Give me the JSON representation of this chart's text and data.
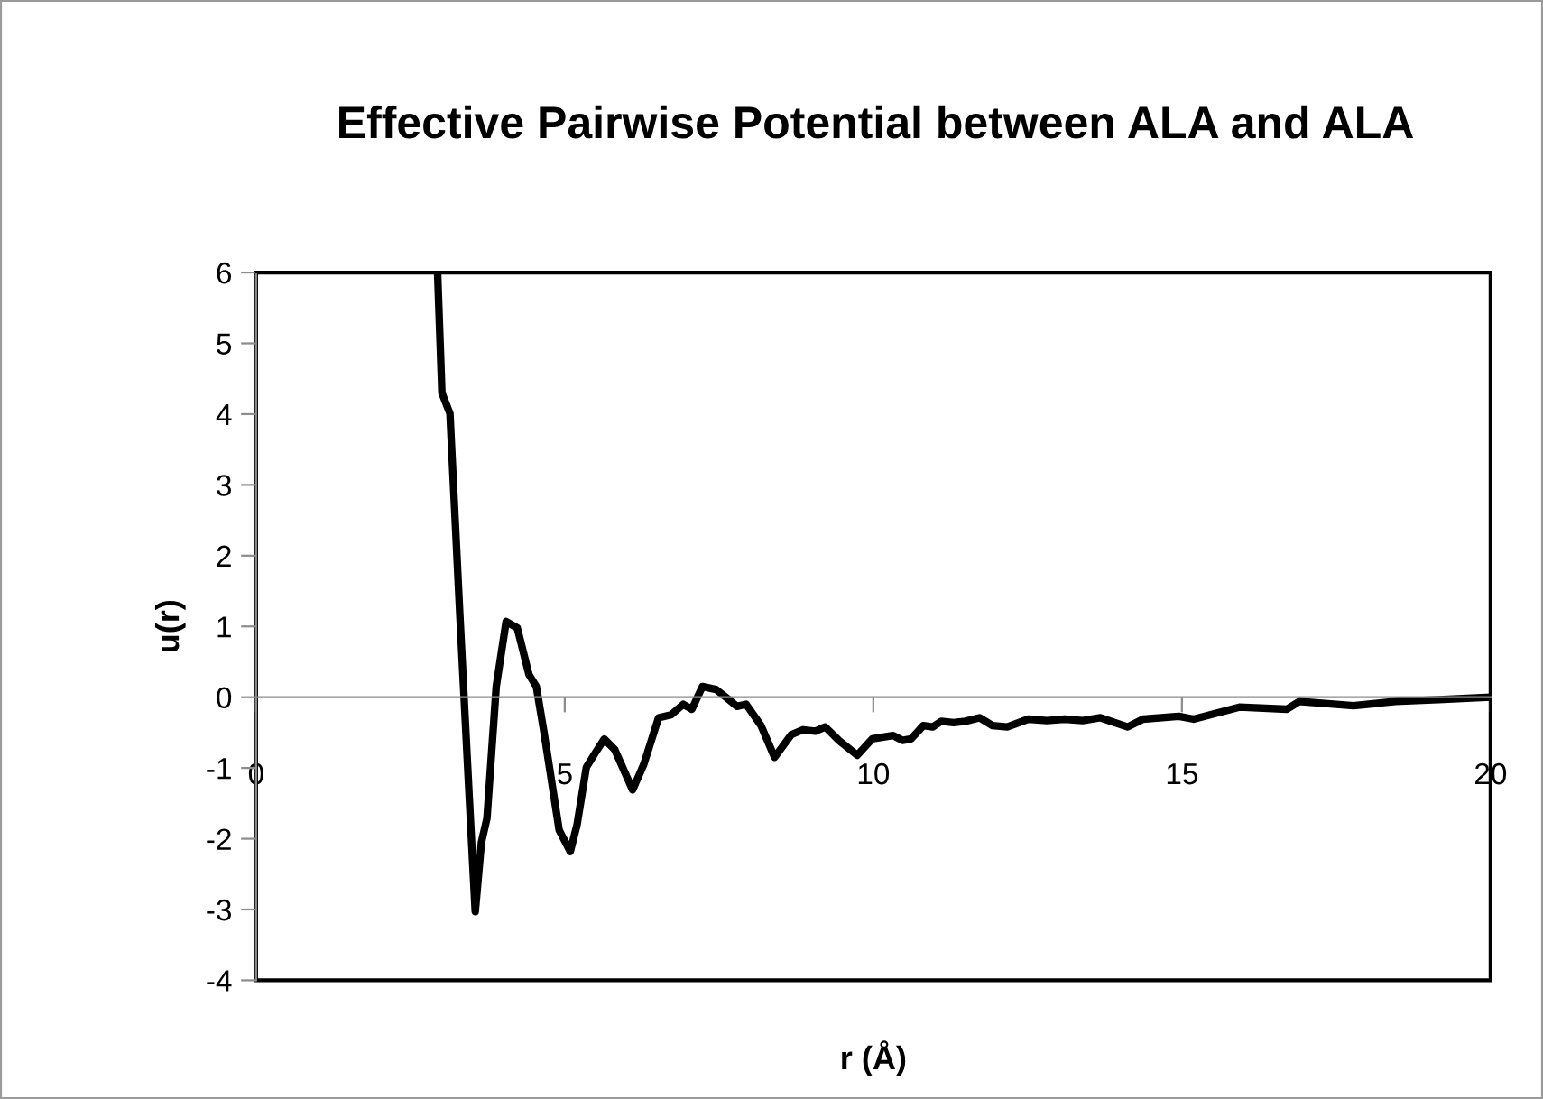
{
  "chart_data": {
    "type": "line",
    "title": "Effective Pairwise Potential between ALA and ALA",
    "xlabel": "r (Å)",
    "ylabel": "u(r)",
    "xlim": [
      0,
      20
    ],
    "xticks": [
      0,
      5,
      10,
      15,
      20
    ],
    "ylim": [
      -4,
      6
    ],
    "yticks": [
      -4,
      -3,
      -2,
      -1,
      0,
      1,
      2,
      3,
      4,
      5,
      6
    ],
    "grid": false,
    "legend": false,
    "marker": "none",
    "line_style": "solid",
    "series": [
      {
        "color": "#000000",
        "x": [
          2.94,
          3.01,
          3.14,
          3.3,
          3.45,
          3.55,
          3.65,
          3.74,
          3.89,
          4.05,
          4.23,
          4.42,
          4.54,
          4.67,
          4.91,
          5.09,
          5.2,
          5.35,
          5.5,
          5.64,
          5.81,
          6.1,
          6.28,
          6.52,
          6.72,
          6.92,
          7.06,
          7.23,
          7.45,
          7.64,
          7.79,
          7.94,
          8.18,
          8.4,
          8.67,
          8.86,
          9.06,
          9.22,
          9.44,
          9.74,
          9.98,
          10.32,
          10.47,
          10.61,
          10.81,
          10.96,
          11.1,
          11.3,
          11.49,
          11.72,
          11.93,
          12.17,
          12.51,
          12.81,
          13.1,
          13.39,
          13.68,
          14.12,
          14.37,
          14.95,
          15.19,
          15.93,
          16.7,
          16.9,
          17.78,
          18.46,
          19.24,
          19.97
        ],
        "values": [
          6.0,
          4.3,
          4.01,
          1.17,
          -1.37,
          -3.03,
          -2.05,
          -1.71,
          0.15,
          1.07,
          0.98,
          0.32,
          0.15,
          -0.53,
          -1.88,
          -2.18,
          -1.8,
          -0.99,
          -0.78,
          -0.59,
          -0.74,
          -1.31,
          -0.95,
          -0.29,
          -0.25,
          -0.1,
          -0.17,
          0.15,
          0.11,
          -0.02,
          -0.13,
          -0.1,
          -0.4,
          -0.85,
          -0.53,
          -0.46,
          -0.48,
          -0.42,
          -0.61,
          -0.82,
          -0.59,
          -0.54,
          -0.61,
          -0.59,
          -0.4,
          -0.42,
          -0.34,
          -0.36,
          -0.34,
          -0.29,
          -0.4,
          -0.42,
          -0.31,
          -0.33,
          -0.31,
          -0.33,
          -0.29,
          -0.42,
          -0.31,
          -0.27,
          -0.31,
          -0.14,
          -0.17,
          -0.06,
          -0.12,
          -0.06,
          -0.03,
          0.0
        ]
      }
    ]
  }
}
